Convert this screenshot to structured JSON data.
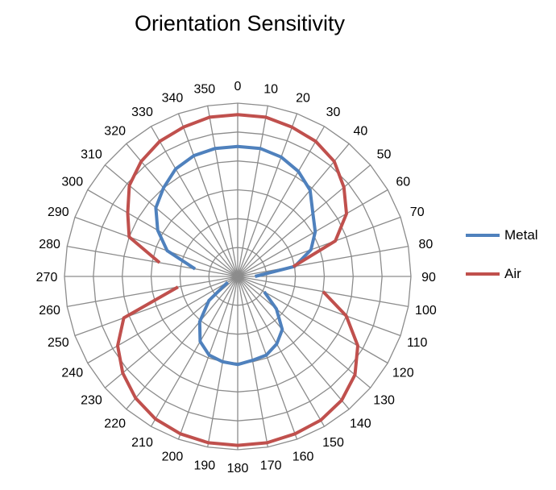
{
  "chart_data": {
    "type": "radar",
    "title": "Orientation Sensitivity",
    "categories": [
      "0",
      "10",
      "20",
      "30",
      "40",
      "50",
      "60",
      "70",
      "80",
      "90",
      "100",
      "110",
      "120",
      "130",
      "140",
      "150",
      "160",
      "170",
      "180",
      "190",
      "200",
      "210",
      "220",
      "230",
      "240",
      "250",
      "260",
      "270",
      "280",
      "290",
      "300",
      "310",
      "320",
      "330",
      "340",
      "350"
    ],
    "rmax": 6,
    "rings": 6,
    "grid": true,
    "legend_position": "right",
    "series": [
      {
        "name": "Metal",
        "color": "#4f81bd",
        "values": [
          4.5,
          4.5,
          4.4,
          4.2,
          3.9,
          3.4,
          3.1,
          2.7,
          2.0,
          0.6,
          null,
          null,
          1.06,
          1.75,
          2.4,
          2.7,
          2.9,
          2.95,
          3.05,
          3.0,
          2.9,
          2.6,
          2.05,
          1.3,
          0.4,
          null,
          null,
          null,
          1.5,
          2.6,
          3.2,
          3.7,
          4.0,
          4.3,
          4.45,
          4.5
        ]
      },
      {
        "name": "Air",
        "color": "#c0504d",
        "values": [
          5.6,
          5.6,
          5.5,
          5.4,
          5.2,
          4.8,
          4.35,
          3.6,
          1.95,
          null,
          3.0,
          4.0,
          4.8,
          5.3,
          5.6,
          5.75,
          5.8,
          5.85,
          5.85,
          5.85,
          5.8,
          5.7,
          5.5,
          5.2,
          4.8,
          4.2,
          2.1,
          null,
          2.75,
          4.0,
          4.4,
          4.9,
          5.2,
          5.4,
          5.5,
          5.6
        ]
      }
    ]
  }
}
